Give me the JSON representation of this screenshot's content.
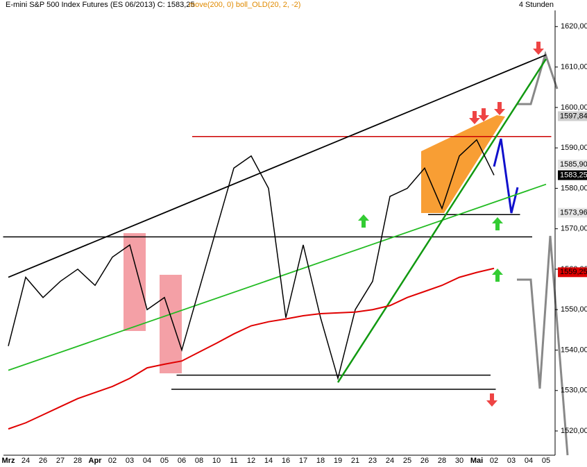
{
  "chart_data": {
    "type": "line",
    "title": "E-mini S&P 500 Index Futures (ES 06/2013) C: 1583,25",
    "subtitle": "move(200, 0) boll_OLD(20, 2, -2)",
    "timeframe": "4 Stunden",
    "categories": [
      "Mrz",
      "24",
      "26",
      "27",
      "28",
      "Apr",
      "02",
      "03",
      "04",
      "05",
      "06",
      "08",
      "10",
      "11",
      "12",
      "14",
      "16",
      "17",
      "18",
      "19",
      "21",
      "23",
      "24",
      "25",
      "26",
      "28",
      "30",
      "Mai",
      "02",
      "03",
      "04",
      "05"
    ],
    "series": [
      {
        "name": "Close",
        "color": "#000000",
        "values": [
          1541,
          1558,
          1553,
          1557,
          1560,
          1556,
          1563,
          1566,
          1550,
          1553,
          1540,
          1555,
          1570,
          1585,
          1588,
          1580,
          1548,
          1566,
          1548,
          1533,
          1550,
          1557,
          1578,
          1580,
          1585,
          1575,
          1588,
          1592,
          1583.25,
          null,
          null,
          null
        ]
      },
      {
        "name": "move(200, 0)",
        "color": "#e00000",
        "values": [
          1520.5,
          1522,
          1524,
          1526,
          1528,
          1529.5,
          1531,
          1533,
          1535.6,
          1536.5,
          1537.3,
          1539.5,
          1541.7,
          1544,
          1546,
          1547,
          1547.7,
          1548.5,
          1549,
          1549.2,
          1549.4,
          1550,
          1551,
          1553,
          1554.5,
          1556,
          1558,
          1559.2,
          1560.2,
          null,
          null,
          null
        ]
      }
    ],
    "trendlines": [
      {
        "color": "#000000",
        "from": [
          0,
          1558
        ],
        "to": [
          31,
          1613
        ]
      },
      {
        "color": "#22bb22",
        "from": [
          0,
          1535
        ],
        "to": [
          31,
          1581
        ]
      },
      {
        "color": "#119911",
        "from": [
          19,
          1532
        ],
        "to": [
          31,
          1612
        ]
      }
    ],
    "levels": [
      {
        "color": "#cc0000",
        "value": 1592.8,
        "from": 10.6,
        "to": 31.3
      },
      {
        "color": "#000000",
        "value": 1568,
        "from": -0.3,
        "to": 30.2
      },
      {
        "color": "#000000",
        "value": 1573.5,
        "from": 24.2,
        "to": 29.5
      },
      {
        "color": "#000000",
        "value": 1533.8,
        "from": 9.7,
        "to": 27.8
      },
      {
        "color": "#000000",
        "value": 1530.3,
        "from": 9.4,
        "to": 28.1
      }
    ],
    "ylim": [
      1514,
      1624
    ],
    "yticks": [
      {
        "value": 1520,
        "label": "1520,00"
      },
      {
        "value": 1530,
        "label": "1530,00"
      },
      {
        "value": 1540,
        "label": "1540,00"
      },
      {
        "value": 1550,
        "label": "1550,00"
      },
      {
        "value": 1560,
        "label": "1560,00"
      },
      {
        "value": 1570,
        "label": "1570,00"
      },
      {
        "value": 1580,
        "label": "1580,00"
      },
      {
        "value": 1590,
        "label": "1590,00"
      },
      {
        "value": 1600,
        "label": "1600,00"
      },
      {
        "value": 1610,
        "label": "1610,00"
      },
      {
        "value": 1620,
        "label": "1620,00"
      }
    ],
    "price_markers": [
      {
        "value": 1597.84,
        "label": "1597,84",
        "color": "#cfcfcf",
        "text_color": "#000000"
      },
      {
        "value": 1585.9,
        "label": "1585,90",
        "color": "#e6e6e6",
        "text_color": "#000000"
      },
      {
        "value": 1583.25,
        "label": "1583,25",
        "color": "#000000",
        "text_color": "#ffffff"
      },
      {
        "value": 1573.96,
        "label": "1573,96",
        "color": "#e6e6e6",
        "text_color": "#000000"
      },
      {
        "value": 1559.25,
        "label": "1559,25",
        "color": "#dd0000",
        "text_color": "#000000"
      }
    ]
  }
}
